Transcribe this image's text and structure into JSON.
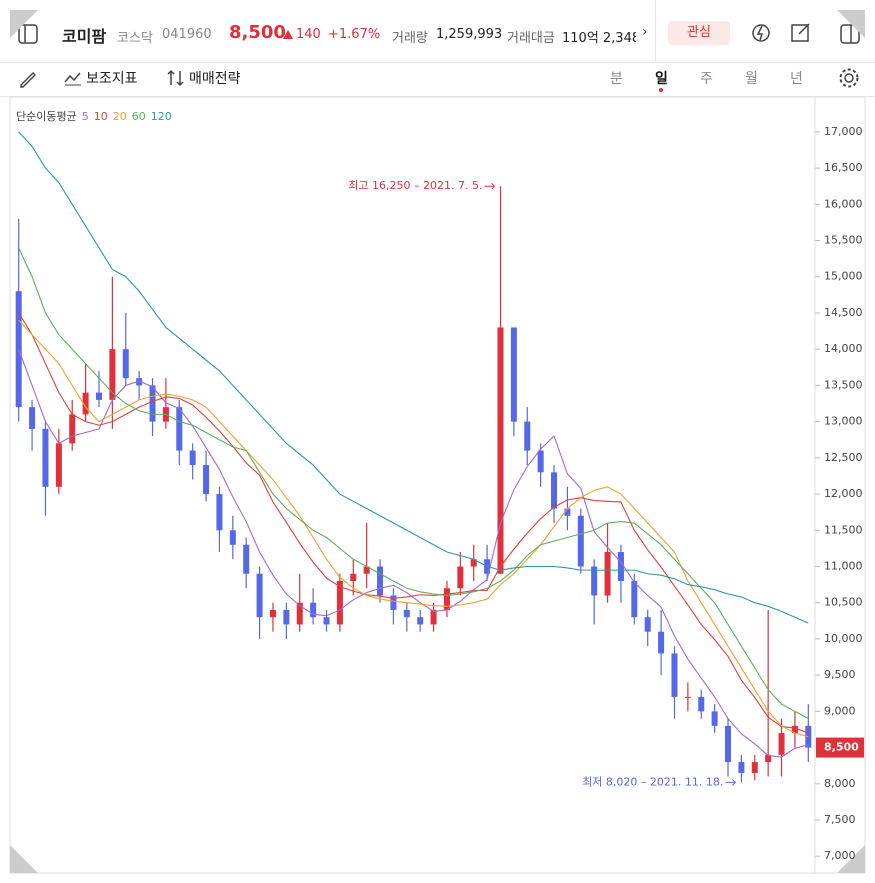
{
  "header": {
    "name": "코미팜",
    "market": "코스닥",
    "code": "041960",
    "price": "8,500",
    "change": "140",
    "change_rate": "+1.67%",
    "volume_label": "거래량",
    "volume": "1,259,993",
    "amount_label": "거래대금",
    "amount": "110억 2,348",
    "watch": "관심"
  },
  "toolbar": {
    "indicator": "보조지표",
    "strategy": "매매전략",
    "periods": [
      "분",
      "일",
      "주",
      "월",
      "년"
    ],
    "active_period": 1
  },
  "chart_data": {
    "type": "candlestick",
    "legend_title": "단순이동평균",
    "up_color": "#e0303a",
    "down_color": "#5468e8",
    "ylim": [
      6810,
      17440
    ],
    "yticks": [
      {
        "value": 7000,
        "label": "7,000"
      },
      {
        "value": 7500,
        "label": "7,500"
      },
      {
        "value": 8000,
        "label": "8,000"
      },
      {
        "value": 8500,
        "label": "8,500"
      },
      {
        "value": 9000,
        "label": "9,000"
      },
      {
        "value": 9500,
        "label": "9,500"
      },
      {
        "value": 10000,
        "label": "10,000"
      },
      {
        "value": 10500,
        "label": "10,500"
      },
      {
        "value": 11000,
        "label": "11,000"
      },
      {
        "value": 11500,
        "label": "11,500"
      },
      {
        "value": 12000,
        "label": "12,000"
      },
      {
        "value": 12500,
        "label": "12,500"
      },
      {
        "value": 13000,
        "label": "13,000"
      },
      {
        "value": 13500,
        "label": "13,500"
      },
      {
        "value": 14000,
        "label": "14,000"
      },
      {
        "value": 14500,
        "label": "14,500"
      },
      {
        "value": 15000,
        "label": "15,000"
      },
      {
        "value": 15500,
        "label": "15,500"
      },
      {
        "value": 16000,
        "label": "16,000"
      },
      {
        "value": 16500,
        "label": "16,500"
      },
      {
        "value": 17000,
        "label": "17,000"
      }
    ],
    "current": {
      "value": 8500,
      "label": "8,500"
    },
    "annotations": [
      {
        "text": "최고 16,250 – 2021. 7. 5.",
        "value": 16250,
        "index": 36,
        "color": "#e0303a"
      },
      {
        "text": "최저 8,020 – 2021. 11. 18.",
        "value": 8020,
        "index": 54,
        "color": "#5468e8"
      }
    ],
    "open": [
      14800,
      13200,
      12900,
      12100,
      12700,
      13100,
      13400,
      13300,
      14000,
      13600,
      13500,
      13000,
      13200,
      12600,
      12400,
      12000,
      11500,
      11300,
      10900,
      10300,
      10400,
      10200,
      10500,
      10300,
      10200,
      10800,
      10900,
      11000,
      10600,
      10400,
      10300,
      10200,
      10400,
      10700,
      11000,
      11100,
      10900,
      14300,
      13000,
      12600,
      12300,
      11800,
      11700,
      11000,
      10600,
      11200,
      10800,
      10300,
      10100,
      9800,
      9200,
      9200,
      9000,
      8800,
      8300,
      8150,
      8300,
      8400,
      8700,
      8800
    ],
    "high": [
      15800,
      13300,
      13000,
      12900,
      13300,
      13800,
      13700,
      15000,
      14500,
      13700,
      13600,
      13600,
      13300,
      12700,
      12600,
      12100,
      11700,
      11400,
      11000,
      10500,
      10500,
      10900,
      10700,
      10400,
      10900,
      11100,
      11600,
      11100,
      10700,
      10500,
      10400,
      10500,
      10800,
      11200,
      11300,
      11300,
      16250,
      14300,
      13200,
      12700,
      12400,
      12100,
      11800,
      11100,
      11600,
      11300,
      10900,
      10400,
      10400,
      9900,
      9400,
      9300,
      9100,
      8900,
      8400,
      8400,
      10400,
      8900,
      9000,
      9100
    ],
    "low": [
      13000,
      12600,
      11700,
      12000,
      12600,
      13000,
      13200,
      12900,
      13500,
      13300,
      12800,
      12900,
      12400,
      12200,
      11900,
      11200,
      11100,
      10700,
      10000,
      10100,
      10000,
      10100,
      10200,
      10100,
      10100,
      10600,
      10700,
      10500,
      10200,
      10100,
      10100,
      10100,
      10300,
      10600,
      10800,
      10800,
      10900,
      12800,
      12400,
      12100,
      11600,
      11500,
      10900,
      10200,
      10500,
      10500,
      10200,
      9900,
      9500,
      8900,
      9000,
      8900,
      8700,
      8100,
      8020,
      8050,
      8100,
      8100,
      8500,
      8300
    ],
    "close": [
      13200,
      12900,
      12100,
      12700,
      13100,
      13400,
      13300,
      14000,
      13600,
      13500,
      13000,
      13200,
      12600,
      12400,
      12000,
      11500,
      11300,
      10900,
      10300,
      10400,
      10200,
      10500,
      10300,
      10200,
      10800,
      10900,
      11000,
      10600,
      10400,
      10300,
      10200,
      10400,
      10700,
      11000,
      11100,
      10900,
      14300,
      13000,
      12600,
      12300,
      11800,
      11700,
      11000,
      10600,
      11200,
      10800,
      10300,
      10100,
      9800,
      9200,
      9200,
      9000,
      8800,
      8300,
      8150,
      8300,
      8400,
      8700,
      8800,
      8500
    ],
    "series": [
      {
        "name": "5",
        "color": "#9c6ade",
        "values": [
          14000,
          13500,
          13000,
          12700,
          12800,
          12850,
          12900,
          13300,
          13500,
          13560,
          13480,
          13260,
          13180,
          12940,
          12640,
          12340,
          11960,
          11620,
          11200,
          10880,
          10620,
          10460,
          10340,
          10320,
          10400,
          10540,
          10640,
          10700,
          10740,
          10640,
          10500,
          10380,
          10400,
          10520,
          10680,
          10820,
          11600,
          12060,
          12380,
          12620,
          12800,
          12280,
          12080,
          11480,
          11260,
          11060,
          10780,
          10600,
          10440,
          10040,
          9720,
          9460,
          9200,
          8900,
          8690,
          8550,
          8390,
          8370,
          8490,
          8540
        ]
      },
      {
        "name": "10",
        "color": "#e0403a",
        "values": [
          14500,
          14200,
          13800,
          13400,
          13100,
          13000,
          12950,
          13000,
          13100,
          13200,
          13280,
          13340,
          13320,
          13230,
          13060,
          12870,
          12660,
          12430,
          12260,
          11890,
          11610,
          11320,
          11060,
          10840,
          10720,
          10660,
          10610,
          10590,
          10560,
          10580,
          10610,
          10600,
          10620,
          10640,
          10670,
          10670,
          11000,
          11240,
          11460,
          11660,
          11820,
          11920,
          11950,
          11910,
          11900,
          11890,
          11500,
          11230,
          10990,
          10730,
          10470,
          10200,
          9990,
          9760,
          9430,
          9190,
          8920,
          8790,
          8770,
          8700
        ]
      },
      {
        "name": "20",
        "color": "#f0a030",
        "values": [
          14400,
          14200,
          14000,
          13800,
          13500,
          13200,
          13000,
          13100,
          13200,
          13300,
          13350,
          13380,
          13350,
          13300,
          13200,
          13000,
          12800,
          12600,
          12400,
          12200,
          11950,
          11700,
          11400,
          11100,
          10850,
          10700,
          10600,
          10550,
          10520,
          10500,
          10480,
          10460,
          10450,
          10470,
          10500,
          10550,
          10750,
          10900,
          11100,
          11300,
          11550,
          11800,
          11950,
          12050,
          12100,
          12000,
          11800,
          11600,
          11400,
          11200,
          10800,
          10500,
          10200,
          9900,
          9600,
          9300,
          9000,
          8800,
          8700,
          8650
        ]
      },
      {
        "name": "60",
        "color": "#5cb05c",
        "values": [
          15400,
          15000,
          14500,
          14200,
          14000,
          13800,
          13600,
          13400,
          13250,
          13150,
          13100,
          13100,
          13000,
          12950,
          12850,
          12750,
          12650,
          12600,
          12300,
          12000,
          11800,
          11650,
          11500,
          11400,
          11250,
          11100,
          11000,
          10900,
          10800,
          10700,
          10650,
          10620,
          10600,
          10620,
          10650,
          10700,
          10800,
          10950,
          11150,
          11300,
          11350,
          11400,
          11450,
          11500,
          11600,
          11620,
          11600,
          11450,
          11300,
          11100,
          10900,
          10700,
          10500,
          10200,
          9900,
          9600,
          9300,
          9100,
          9000,
          8900
        ]
      },
      {
        "name": "120",
        "color": "#2a9aa0",
        "values": [
          17000,
          16800,
          16500,
          16300,
          16000,
          15700,
          15400,
          15100,
          15000,
          14800,
          14550,
          14300,
          14150,
          14000,
          13850,
          13700,
          13500,
          13300,
          13100,
          12900,
          12700,
          12550,
          12400,
          12200,
          12000,
          11900,
          11800,
          11700,
          11600,
          11500,
          11400,
          11300,
          11200,
          11150,
          11100,
          11000,
          10950,
          10980,
          11000,
          11000,
          11000,
          10980,
          10950,
          10950,
          10950,
          10950,
          10950,
          10900,
          10880,
          10830,
          10750,
          10720,
          10680,
          10620,
          10580,
          10500,
          10450,
          10380,
          10300,
          10220
        ]
      }
    ]
  }
}
